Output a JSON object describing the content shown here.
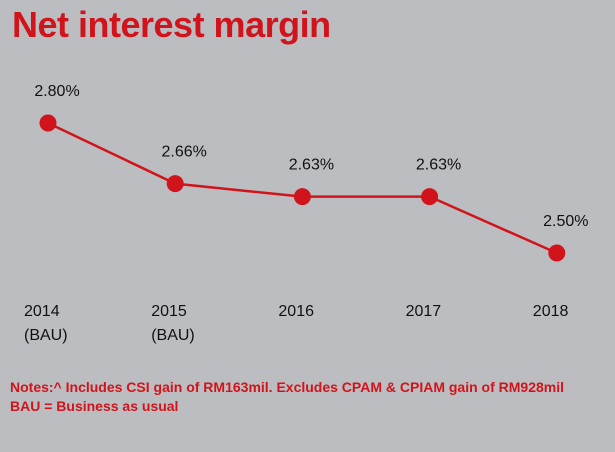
{
  "title": "Net interest margin",
  "chart_data": {
    "type": "line",
    "categories": [
      "2014",
      "2015",
      "2016",
      "2017",
      "2018"
    ],
    "category_sublabels": [
      "(BAU)",
      "(BAU)",
      "",
      "",
      ""
    ],
    "values": [
      2.8,
      2.66,
      2.63,
      2.63,
      2.5
    ],
    "data_labels": [
      "2.80%",
      "2.66%",
      "2.63%",
      "2.63%",
      "2.50%"
    ],
    "ylim": [
      2.47,
      2.83
    ],
    "grid": false,
    "colors": {
      "line": "#d1141b",
      "marker": "#d1141b",
      "text": "#111111"
    }
  },
  "notes": {
    "line1": "Notes:^ Includes CSI gain of RM163mil. Excludes CPAM & CPIAM gain of RM928mil",
    "line2": "BAU = Business as usual"
  }
}
